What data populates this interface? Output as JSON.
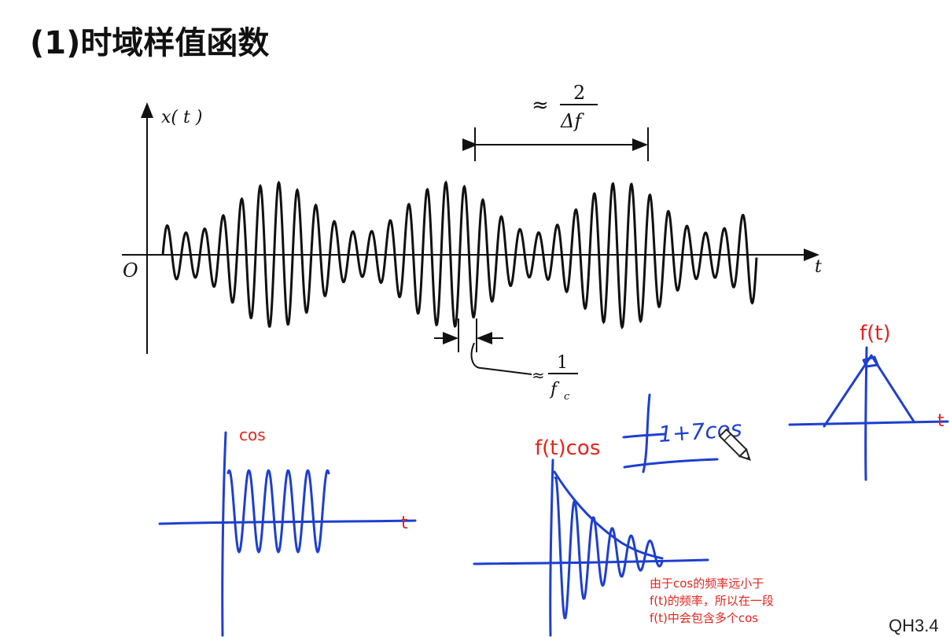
{
  "title": "(1)时域样值函数",
  "figure": {
    "y_label": "x( t )",
    "origin_label": "O",
    "x_label": "t",
    "period_approx": "≈",
    "period_num": "2",
    "period_den": "Δf",
    "carrier_approx": "≈",
    "carrier_num": "1",
    "carrier_den": "f",
    "carrier_sub": "c"
  },
  "notes": {
    "cos_label": "cos",
    "cos_axis_t": "t",
    "ftcos_label": "f(t)cos",
    "ft_label": "f(t)",
    "ft_axis_t": "t",
    "scribble_text": "1+7cos",
    "explain_line1": "由于cos的频率远小于",
    "explain_line2": "f(t)的频率，所以在一段",
    "explain_line3": "f(t)中会包含多个cos"
  },
  "footer_label": "QH3.4",
  "colors": {
    "ink": "#111111",
    "pen": "#1e3fd1",
    "annotation": "#e8221b"
  }
}
